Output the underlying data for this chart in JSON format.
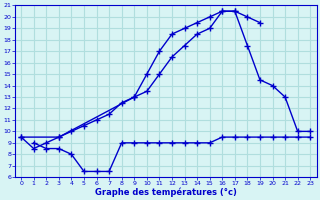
{
  "line1_x": [
    0,
    1,
    2,
    3,
    4,
    5,
    6,
    7,
    8,
    9,
    10,
    11,
    12,
    13,
    14,
    15,
    16,
    17,
    18,
    19
  ],
  "line1_y": [
    9.5,
    8.5,
    9.0,
    9.5,
    10.0,
    10.5,
    11.0,
    11.5,
    12.5,
    13.0,
    15.0,
    17.0,
    18.5,
    19.0,
    19.5,
    20.0,
    20.5,
    20.5,
    20.0,
    19.5
  ],
  "line2_x": [
    0,
    3,
    9,
    10,
    11,
    12,
    13,
    14,
    15,
    16,
    17,
    18,
    19,
    20,
    21,
    22,
    23
  ],
  "line2_y": [
    9.5,
    9.5,
    13.0,
    13.5,
    15.0,
    16.5,
    17.5,
    18.5,
    19.0,
    20.5,
    20.5,
    17.5,
    14.5,
    14.0,
    13.0,
    10.0,
    10.0
  ],
  "line3_x": [
    1,
    2,
    3,
    4,
    5,
    6,
    7,
    8,
    9,
    10,
    11,
    12,
    13,
    14,
    15,
    16,
    17,
    18,
    19,
    20,
    21,
    22,
    23
  ],
  "line3_y": [
    9.0,
    8.5,
    8.5,
    8.0,
    6.5,
    6.5,
    6.5,
    9.0,
    9.0,
    9.0,
    9.0,
    9.0,
    9.0,
    9.0,
    9.0,
    9.5,
    9.5,
    9.5,
    9.5,
    9.5,
    9.5,
    9.5,
    9.5
  ],
  "xlabel": "Graphe des températures (°c)",
  "xlim": [
    -0.5,
    23.5
  ],
  "ylim": [
    6,
    21
  ],
  "yticks": [
    6,
    7,
    8,
    9,
    10,
    11,
    12,
    13,
    14,
    15,
    16,
    17,
    18,
    19,
    20,
    21
  ],
  "xticks": [
    0,
    1,
    2,
    3,
    4,
    5,
    6,
    7,
    8,
    9,
    10,
    11,
    12,
    13,
    14,
    15,
    16,
    17,
    18,
    19,
    20,
    21,
    22,
    23
  ],
  "line_color": "#0000cc",
  "bg_color": "#d8f4f4",
  "grid_color": "#b0dede",
  "marker": "+",
  "marker_size": 4,
  "line_width": 1.0
}
